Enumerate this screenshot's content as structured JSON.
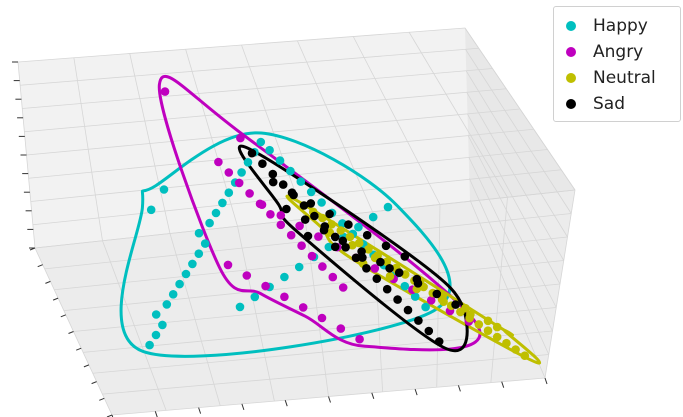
{
  "chart_data": {
    "type": "scatter",
    "projection": "3d",
    "title": "",
    "xlabel": "",
    "ylabel": "",
    "zlabel": "",
    "grid": true,
    "tick_labels_shown": false,
    "legend_position": "top-right",
    "series": [
      {
        "name": "Happy",
        "color": "#00bfbf",
        "x": [
          0.08,
          0.1,
          0.12,
          0.11,
          0.14,
          0.16,
          0.18,
          0.2,
          0.22,
          0.24,
          0.26,
          0.25,
          0.28,
          0.3,
          0.32,
          0.34,
          0.36,
          0.38,
          0.4,
          0.42,
          0.44,
          0.46,
          0.48,
          0.5,
          0.52,
          0.54,
          0.56,
          0.58,
          0.6,
          0.62,
          0.64,
          0.66,
          0.68,
          0.7,
          0.72,
          0.74,
          0.76,
          0.3,
          0.34,
          0.38,
          0.42,
          0.46,
          0.5,
          0.54,
          0.58,
          0.62,
          0.66,
          0.7,
          0.12,
          0.16
        ],
        "y": [
          0.1,
          0.14,
          0.18,
          0.22,
          0.26,
          0.3,
          0.34,
          0.38,
          0.42,
          0.46,
          0.5,
          0.54,
          0.58,
          0.62,
          0.66,
          0.7,
          0.74,
          0.78,
          0.82,
          0.86,
          0.9,
          0.88,
          0.84,
          0.8,
          0.76,
          0.72,
          0.68,
          0.64,
          0.6,
          0.56,
          0.52,
          0.48,
          0.44,
          0.4,
          0.36,
          0.32,
          0.28,
          0.2,
          0.24,
          0.28,
          0.32,
          0.36,
          0.4,
          0.44,
          0.48,
          0.52,
          0.56,
          0.6,
          0.52,
          0.6
        ],
        "z": [
          0.1,
          0.12,
          0.14,
          0.16,
          0.18,
          0.2,
          0.22,
          0.24,
          0.26,
          0.28,
          0.3,
          0.32,
          0.34,
          0.36,
          0.38,
          0.4,
          0.42,
          0.44,
          0.46,
          0.48,
          0.5,
          0.46,
          0.44,
          0.42,
          0.4,
          0.38,
          0.36,
          0.34,
          0.32,
          0.3,
          0.28,
          0.26,
          0.24,
          0.22,
          0.2,
          0.18,
          0.16,
          0.3,
          0.32,
          0.34,
          0.36,
          0.38,
          0.4,
          0.42,
          0.44,
          0.46,
          0.48,
          0.5,
          0.6,
          0.64
        ]
      },
      {
        "name": "Angry",
        "color": "#bf00bf",
        "x": [
          0.2,
          0.36,
          0.3,
          0.32,
          0.34,
          0.36,
          0.38,
          0.4,
          0.42,
          0.44,
          0.46,
          0.48,
          0.5,
          0.52,
          0.54,
          0.4,
          0.44,
          0.48,
          0.52,
          0.56,
          0.6,
          0.64,
          0.68,
          0.72,
          0.76,
          0.8,
          0.84,
          0.3,
          0.34,
          0.38,
          0.42,
          0.46,
          0.5,
          0.54,
          0.58
        ],
        "y": [
          0.95,
          0.78,
          0.7,
          0.66,
          0.62,
          0.58,
          0.54,
          0.5,
          0.46,
          0.42,
          0.38,
          0.34,
          0.3,
          0.26,
          0.22,
          0.6,
          0.56,
          0.52,
          0.48,
          0.44,
          0.4,
          0.36,
          0.32,
          0.28,
          0.24,
          0.2,
          0.16,
          0.4,
          0.36,
          0.32,
          0.28,
          0.24,
          0.2,
          0.16,
          0.12
        ],
        "z": [
          0.9,
          0.8,
          0.72,
          0.7,
          0.68,
          0.66,
          0.64,
          0.62,
          0.6,
          0.58,
          0.56,
          0.54,
          0.52,
          0.5,
          0.48,
          0.5,
          0.48,
          0.46,
          0.44,
          0.42,
          0.4,
          0.38,
          0.36,
          0.34,
          0.32,
          0.3,
          0.28,
          0.3,
          0.28,
          0.26,
          0.24,
          0.22,
          0.2,
          0.18,
          0.16
        ]
      },
      {
        "name": "Neutral",
        "color": "#bfbf00",
        "x": [
          0.5,
          0.52,
          0.54,
          0.56,
          0.58,
          0.6,
          0.62,
          0.64,
          0.66,
          0.68,
          0.7,
          0.72,
          0.74,
          0.76,
          0.78,
          0.8,
          0.82,
          0.84,
          0.86,
          0.88,
          0.9,
          0.92,
          0.94,
          0.96,
          0.98,
          0.55,
          0.6,
          0.65,
          0.7,
          0.75,
          0.8,
          0.85,
          0.9,
          0.62,
          0.68,
          0.74,
          0.8,
          0.86,
          0.92
        ],
        "y": [
          0.6,
          0.58,
          0.56,
          0.54,
          0.52,
          0.5,
          0.48,
          0.46,
          0.44,
          0.42,
          0.4,
          0.38,
          0.36,
          0.34,
          0.32,
          0.3,
          0.28,
          0.26,
          0.24,
          0.22,
          0.2,
          0.18,
          0.16,
          0.14,
          0.12,
          0.5,
          0.46,
          0.42,
          0.38,
          0.34,
          0.3,
          0.26,
          0.22,
          0.4,
          0.36,
          0.32,
          0.28,
          0.24,
          0.2
        ],
        "z": [
          0.5,
          0.48,
          0.46,
          0.44,
          0.42,
          0.4,
          0.38,
          0.36,
          0.34,
          0.32,
          0.3,
          0.28,
          0.26,
          0.24,
          0.22,
          0.2,
          0.18,
          0.16,
          0.14,
          0.12,
          0.1,
          0.08,
          0.06,
          0.04,
          0.02,
          0.44,
          0.4,
          0.36,
          0.32,
          0.28,
          0.24,
          0.2,
          0.16,
          0.34,
          0.3,
          0.26,
          0.22,
          0.18,
          0.14
        ]
      },
      {
        "name": "Sad",
        "color": "#000000",
        "x": [
          0.4,
          0.42,
          0.44,
          0.46,
          0.48,
          0.5,
          0.52,
          0.54,
          0.56,
          0.58,
          0.6,
          0.62,
          0.64,
          0.66,
          0.68,
          0.7,
          0.72,
          0.74,
          0.76,
          0.44,
          0.48,
          0.52,
          0.56,
          0.6,
          0.64,
          0.68,
          0.72,
          0.46,
          0.5,
          0.54,
          0.58,
          0.62,
          0.66,
          0.7,
          0.74,
          0.78,
          0.82,
          0.5,
          0.56,
          0.62,
          0.68,
          0.74
        ],
        "y": [
          0.8,
          0.76,
          0.72,
          0.68,
          0.64,
          0.6,
          0.56,
          0.52,
          0.48,
          0.44,
          0.4,
          0.36,
          0.32,
          0.28,
          0.24,
          0.2,
          0.16,
          0.12,
          0.08,
          0.7,
          0.66,
          0.62,
          0.58,
          0.54,
          0.5,
          0.46,
          0.42,
          0.6,
          0.56,
          0.52,
          0.48,
          0.44,
          0.4,
          0.36,
          0.32,
          0.28,
          0.24,
          0.5,
          0.46,
          0.42,
          0.38,
          0.34
        ],
        "z": [
          0.6,
          0.58,
          0.56,
          0.54,
          0.52,
          0.5,
          0.48,
          0.46,
          0.44,
          0.42,
          0.4,
          0.38,
          0.36,
          0.34,
          0.32,
          0.3,
          0.28,
          0.26,
          0.24,
          0.52,
          0.5,
          0.48,
          0.46,
          0.44,
          0.42,
          0.4,
          0.38,
          0.46,
          0.44,
          0.42,
          0.4,
          0.38,
          0.36,
          0.34,
          0.32,
          0.3,
          0.28,
          0.4,
          0.38,
          0.36,
          0.34,
          0.32
        ]
      }
    ]
  }
}
